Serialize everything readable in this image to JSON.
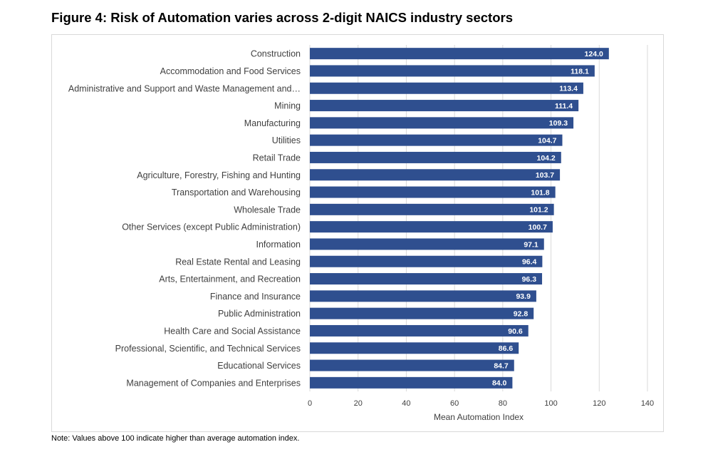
{
  "figure": {
    "title": "Figure 4: Risk of Automation varies across 2-digit NAICS industry sectors",
    "note": "Note: Values above 100 indicate higher than average automation index."
  },
  "chart_data": {
    "type": "bar",
    "orientation": "horizontal",
    "title": "",
    "xlabel": "Mean Automation Index",
    "ylabel": "",
    "xlim": [
      0,
      140
    ],
    "xticks": [
      0,
      20,
      40,
      60,
      80,
      100,
      120,
      140
    ],
    "grid": true,
    "bar_color": "#2f4f8f",
    "data_label_color": "#ffffff",
    "categories": [
      "Construction",
      "Accommodation and Food Services",
      "Administrative and Support and Waste Management and…",
      "Mining",
      "Manufacturing",
      "Utilities",
      "Retail Trade",
      "Agriculture, Forestry, Fishing and Hunting",
      "Transportation and Warehousing",
      "Wholesale Trade",
      "Other Services (except Public Administration)",
      "Information",
      "Real Estate Rental and Leasing",
      "Arts, Entertainment, and Recreation",
      "Finance and Insurance",
      "Public Administration",
      "Health Care and Social Assistance",
      "Professional, Scientific, and Technical Services",
      "Educational Services",
      "Management of Companies and Enterprises"
    ],
    "values": [
      124.0,
      118.1,
      113.4,
      111.4,
      109.3,
      104.7,
      104.2,
      103.7,
      101.8,
      101.2,
      100.7,
      97.1,
      96.4,
      96.3,
      93.9,
      92.8,
      90.6,
      86.6,
      84.7,
      84.0
    ],
    "value_labels": [
      "124.0",
      "118.1",
      "113.4",
      "111.4",
      "109.3",
      "104.7",
      "104.2",
      "103.7",
      "101.8",
      "101.2",
      "100.7",
      "97.1",
      "96.4",
      "96.3",
      "93.9",
      "92.8",
      "90.6",
      "86.6",
      "84.7",
      "84.0"
    ]
  }
}
